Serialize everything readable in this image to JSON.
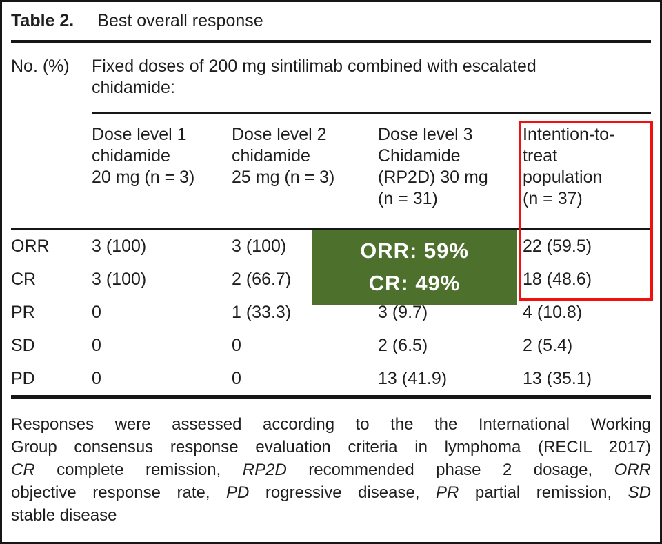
{
  "title": {
    "label": "Table 2.",
    "caption": "Best overall response"
  },
  "header": {
    "units_label": "No. (%)",
    "group_header": "Fixed doses of 200 mg sintilimab combined with escalated\nchidamide:",
    "columns": [
      "Dose level 1\nchidamide\n20 mg (n = 3)",
      "Dose level 2\nchidamide\n25 mg (n = 3)",
      "Dose level 3\nChidamide\n(RP2D) 30 mg\n(n = 31)",
      "Intention-to-\ntreat\npopulation\n(n = 37)"
    ]
  },
  "table": {
    "rows": [
      {
        "label": "ORR",
        "values": [
          "3 (100)",
          "3 (100)",
          "",
          "22 (59.5)"
        ]
      },
      {
        "label": "CR",
        "values": [
          "3 (100)",
          "2 (66.7)",
          "",
          "18 (48.6)"
        ]
      },
      {
        "label": "PR",
        "values": [
          "0",
          "1 (33.3)",
          "3 (9.7)",
          "4 (10.8)"
        ]
      },
      {
        "label": "SD",
        "values": [
          "0",
          "0",
          "2 (6.5)",
          "2 (5.4)"
        ]
      },
      {
        "label": "PD",
        "values": [
          "0",
          "0",
          "13 (41.9)",
          "13 (35.1)"
        ]
      }
    ]
  },
  "overlay": {
    "line1": "ORR: 59%",
    "line2": "CR: 49%",
    "background_color": "#4d702d",
    "text_color": "#ffffff"
  },
  "highlight_box": {
    "border_color": "#f11010",
    "target": "Intention-to-treat population column, ORR and CR rows"
  },
  "footnote": {
    "line1": "Responses were assessed according to the the International Working",
    "line2": "Group consensus response evaluation criteria in lymphoma (RECIL 2017)",
    "line3": {
      "i1": "CR",
      "t1": " complete remission, ",
      "i2": "RP2D",
      "t2": " recommended phase 2 dosage, ",
      "i3": "ORR"
    },
    "line4": {
      "t0": "objective response rate, ",
      "i1": "PD",
      "t1": " rogressive disease, ",
      "i2": "PR",
      "t2": " partial remission, ",
      "i3": "SD"
    },
    "line5": "stable disease"
  }
}
